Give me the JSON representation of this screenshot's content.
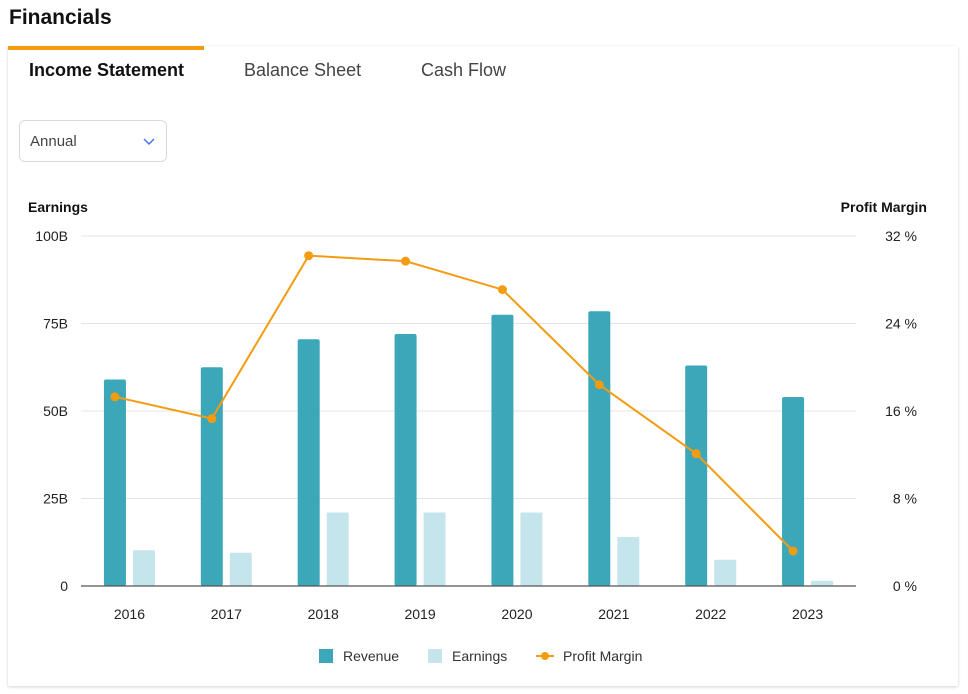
{
  "header": {
    "title": "Financials"
  },
  "tabs": [
    {
      "label": "Income Statement",
      "active": true
    },
    {
      "label": "Balance Sheet",
      "active": false
    },
    {
      "label": "Cash Flow",
      "active": false
    }
  ],
  "period_select": {
    "value": "Annual"
  },
  "colors": {
    "accent": "#f39c12",
    "revenue": "#3ba7b8",
    "earnings": "#c5e5ec",
    "margin": "#f39c12"
  },
  "chart_data": {
    "type": "bar",
    "categories": [
      "2016",
      "2017",
      "2018",
      "2019",
      "2020",
      "2021",
      "2022",
      "2023"
    ],
    "series": [
      {
        "name": "Revenue",
        "type": "bar",
        "axis": "left",
        "values": [
          59,
          62.5,
          70.5,
          72,
          77.5,
          78.5,
          63,
          54
        ]
      },
      {
        "name": "Earnings",
        "type": "bar",
        "axis": "left",
        "values": [
          10.2,
          9.5,
          21,
          21,
          21,
          14,
          7.5,
          1.5
        ]
      },
      {
        "name": "Profit Margin",
        "type": "line",
        "axis": "right",
        "values": [
          17.3,
          15.3,
          30.2,
          29.7,
          27.1,
          18.4,
          12.1,
          3.2
        ]
      }
    ],
    "y_left": {
      "label": "Earnings",
      "ticks": [
        "0",
        "25B",
        "50B",
        "75B",
        "100B"
      ],
      "lim": [
        0,
        100
      ]
    },
    "y_right": {
      "label": "Profit Margin",
      "ticks": [
        "0 %",
        "8 %",
        "16 %",
        "24 %",
        "32 %"
      ],
      "lim": [
        0,
        32
      ]
    },
    "legend": {
      "position": "bottom",
      "items": [
        "Revenue",
        "Earnings",
        "Profit Margin"
      ]
    },
    "grid": true
  }
}
